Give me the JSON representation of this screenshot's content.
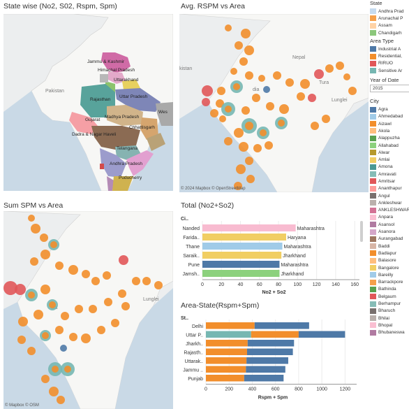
{
  "panels": {
    "state_map": {
      "title": "State wise (No2, S02, Rspm, Spm)"
    },
    "rspm_map": {
      "title": "Avg. RSPM vs Area",
      "credit": "© 2024 Mapbox  © OpenStreetMap"
    },
    "spm_map": {
      "title": "Sum SPM vs Area",
      "credit": "© Mapbox  © OSM"
    },
    "total_chart": {
      "title": "Total (No2+So2)",
      "row_header": "Ci.."
    },
    "area_chart": {
      "title": "Area-State(Rspm+Spm)",
      "row_header": "St.."
    }
  },
  "map_labels": {
    "pakistan": "Pakistan",
    "pakistan_short": "kistan",
    "nepal": "Nepal",
    "india": "dia",
    "tura": "Tura",
    "lunglei": "Lunglei",
    "lunglei_short": "Lunglei"
  },
  "state_labels": [
    "Jammu & Kashmir",
    "Himachal Pradesh",
    "Uttarakhand",
    "Uttar Pradesh",
    "Rajasthan",
    "Madhya Pradesh",
    "Gujarat",
    "Chhattisgarh",
    "Dadra & Nagar Haveli",
    "Telangana",
    "Andhra Pradesh",
    "Puducherry",
    "Wes"
  ],
  "legend": {
    "state": {
      "title": "State",
      "items": [
        {
          "label": "Andhra Prad",
          "color": "#c6dbef"
        },
        {
          "label": "Arunachal P",
          "color": "#f5a04a"
        },
        {
          "label": "Assam",
          "color": "#ffd3a6"
        },
        {
          "label": "Chandigarh",
          "color": "#8bc77b"
        }
      ]
    },
    "area_type": {
      "title": "Area Type",
      "items": [
        {
          "label": "Industrial A",
          "color": "#4e79a7"
        },
        {
          "label": "Residential,",
          "color": "#f28e2b"
        },
        {
          "label": "RIRUO",
          "color": "#e15759"
        },
        {
          "label": "Sensitive Ar",
          "color": "#76b7b2"
        }
      ]
    },
    "year": {
      "title": "Year of Date",
      "value": "2015"
    },
    "city": {
      "title": "City",
      "items": [
        {
          "label": "Agra",
          "color": "#4e79a7"
        },
        {
          "label": "Ahmedabad",
          "color": "#a0cbe8"
        },
        {
          "label": "Aizawl",
          "color": "#f28e2b"
        },
        {
          "label": "Akola",
          "color": "#ffbe7d"
        },
        {
          "label": "Alappuzha",
          "color": "#59a14f"
        },
        {
          "label": "Allahabad",
          "color": "#8cd17d"
        },
        {
          "label": "Alwar",
          "color": "#b6992d"
        },
        {
          "label": "Amlai",
          "color": "#f1ce63"
        },
        {
          "label": "Amona",
          "color": "#499894"
        },
        {
          "label": "Amravati",
          "color": "#86bcb6"
        },
        {
          "label": "Amritsar",
          "color": "#e15759"
        },
        {
          "label": "Ananthapur",
          "color": "#ff9d9a"
        },
        {
          "label": "Angul",
          "color": "#79706e"
        },
        {
          "label": "Ankleshwar",
          "color": "#bab0ac"
        },
        {
          "label": "ANKLESHWAR",
          "color": "#d37295"
        },
        {
          "label": "Anpara",
          "color": "#fabfd2"
        },
        {
          "label": "Asansol",
          "color": "#b07aa1"
        },
        {
          "label": "Asanora",
          "color": "#d4a6c8"
        },
        {
          "label": "Aurangabad",
          "color": "#9d7660"
        },
        {
          "label": "Baddi",
          "color": "#d7b5a6"
        },
        {
          "label": "Badlapur",
          "color": "#f28e2b"
        },
        {
          "label": "Balasore",
          "color": "#ffbe7d"
        },
        {
          "label": "Bangalore",
          "color": "#f1ce63"
        },
        {
          "label": "Bareilly",
          "color": "#a0cbe8"
        },
        {
          "label": "Barrackpore",
          "color": "#f5a04a"
        },
        {
          "label": "Bathinda",
          "color": "#59a14f"
        },
        {
          "label": "Belgaum",
          "color": "#e15759"
        },
        {
          "label": "Berhampur",
          "color": "#86bcb6"
        },
        {
          "label": "Bharuch",
          "color": "#79706e"
        },
        {
          "label": "Bhilai",
          "color": "#bab0ac"
        },
        {
          "label": "Bhopal",
          "color": "#fabfd2"
        },
        {
          "label": "Bhubaneswa",
          "color": "#b07aa1"
        }
      ]
    }
  },
  "chart_data": [
    {
      "type": "bar",
      "title": "Total (No2+So2)",
      "categories": [
        "Nanded",
        "Farida..",
        "Thane",
        "Saraik..",
        "Pune",
        "Jamsh.."
      ],
      "states": [
        "Maharashtra",
        "Haryana",
        "Maharashtra",
        "Jharkhand",
        "Maharashtra",
        "Jharkhand"
      ],
      "colors": [
        "#f8bbd0",
        "#f1ce63",
        "#a0cbe8",
        "#f1ce63",
        "#4e79a7",
        "#8cd17d"
      ],
      "values": [
        98,
        88,
        84,
        83,
        81,
        81
      ],
      "xlabel": "No2 + So2",
      "xlim": [
        0,
        165
      ],
      "ticks": [
        0,
        20,
        40,
        60,
        80,
        100,
        120,
        140,
        160
      ]
    },
    {
      "type": "bar",
      "stacked": true,
      "title": "Area-State(Rspm+Spm)",
      "categories": [
        "Delhi",
        "Uttar P..",
        "Jharkh..",
        "Rajasth..",
        "Uttarak..",
        "Jammu ..",
        "Punjab"
      ],
      "series": [
        {
          "name": "Sensitive Ar",
          "color": "#76b7b2",
          "values": [
            0,
            390,
            0,
            0,
            0,
            0,
            0
          ]
        },
        {
          "name": "Residential,",
          "color": "#f28e2b",
          "values": [
            420,
            410,
            360,
            355,
            350,
            345,
            330
          ]
        },
        {
          "name": "Industrial A",
          "color": "#4e79a7",
          "values": [
            470,
            400,
            400,
            395,
            360,
            340,
            340
          ]
        }
      ],
      "xlabel": "Rspm + Spm",
      "xlim": [
        0,
        1300
      ],
      "ticks": [
        0,
        200,
        400,
        600,
        800,
        1000,
        1200
      ]
    }
  ]
}
